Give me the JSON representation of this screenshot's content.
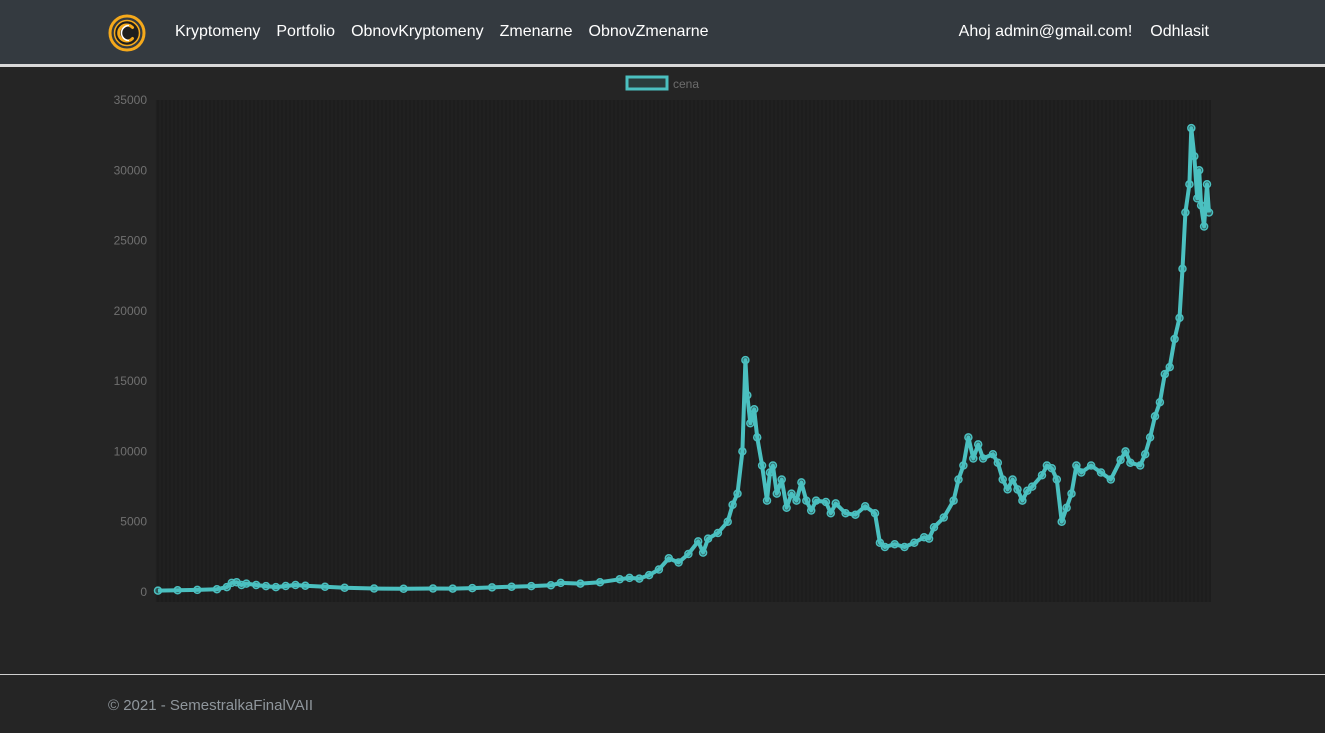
{
  "navbar": {
    "logo_icon": "crypto-coin-logo-icon",
    "links": [
      "Kryptomeny",
      "Portfolio",
      "ObnovKryptomeny",
      "Zmenarne",
      "ObnovZmenarne"
    ],
    "greeting": "Ahoj admin@gmail.com!",
    "logout": "Odhlasit",
    "accent": "#f5a91b"
  },
  "chart_data": {
    "type": "line",
    "series": [
      {
        "name": "cena",
        "color": "#4bc0c0"
      }
    ],
    "legend_position": "top-center",
    "ylim": [
      0,
      35000
    ],
    "yticks": [
      0,
      5000,
      10000,
      15000,
      20000,
      25000,
      30000,
      35000
    ],
    "grid": true,
    "points": [
      [
        0,
        100
      ],
      [
        2,
        120
      ],
      [
        4,
        150
      ],
      [
        6,
        200
      ],
      [
        7,
        350
      ],
      [
        7.5,
        650
      ],
      [
        8,
        700
      ],
      [
        8.5,
        500
      ],
      [
        9,
        600
      ],
      [
        10,
        500
      ],
      [
        11,
        420
      ],
      [
        12,
        350
      ],
      [
        13,
        430
      ],
      [
        14,
        500
      ],
      [
        15,
        450
      ],
      [
        17,
        380
      ],
      [
        19,
        300
      ],
      [
        22,
        250
      ],
      [
        25,
        230
      ],
      [
        28,
        250
      ],
      [
        30,
        240
      ],
      [
        32,
        280
      ],
      [
        34,
        330
      ],
      [
        36,
        380
      ],
      [
        38,
        420
      ],
      [
        40,
        480
      ],
      [
        41,
        650
      ],
      [
        43,
        600
      ],
      [
        45,
        700
      ],
      [
        47,
        900
      ],
      [
        48,
        1000
      ],
      [
        49,
        950
      ],
      [
        50,
        1200
      ],
      [
        51,
        1600
      ],
      [
        52,
        2400
      ],
      [
        53,
        2100
      ],
      [
        54,
        2700
      ],
      [
        55,
        3600
      ],
      [
        55.5,
        2800
      ],
      [
        56,
        3800
      ],
      [
        57,
        4200
      ],
      [
        58,
        5000
      ],
      [
        58.5,
        6200
      ],
      [
        59,
        7000
      ],
      [
        59.5,
        10000
      ],
      [
        59.8,
        16500
      ],
      [
        60,
        14000
      ],
      [
        60.3,
        12000
      ],
      [
        60.7,
        13000
      ],
      [
        61,
        11000
      ],
      [
        61.5,
        9000
      ],
      [
        62,
        6500
      ],
      [
        62.3,
        8500
      ],
      [
        62.6,
        9000
      ],
      [
        63,
        7000
      ],
      [
        63.5,
        8000
      ],
      [
        64,
        6000
      ],
      [
        64.5,
        7000
      ],
      [
        65,
        6500
      ],
      [
        65.5,
        7800
      ],
      [
        66,
        6500
      ],
      [
        66.5,
        5800
      ],
      [
        67,
        6500
      ],
      [
        68,
        6400
      ],
      [
        68.5,
        5600
      ],
      [
        69,
        6300
      ],
      [
        70,
        5600
      ],
      [
        71,
        5500
      ],
      [
        72,
        6100
      ],
      [
        73,
        5600
      ],
      [
        73.5,
        3500
      ],
      [
        74,
        3200
      ],
      [
        75,
        3400
      ],
      [
        76,
        3200
      ],
      [
        77,
        3500
      ],
      [
        78,
        3900
      ],
      [
        78.5,
        3800
      ],
      [
        79,
        4600
      ],
      [
        80,
        5300
      ],
      [
        81,
        6500
      ],
      [
        81.5,
        8000
      ],
      [
        82,
        9000
      ],
      [
        82.5,
        11000
      ],
      [
        83,
        9500
      ],
      [
        83.5,
        10500
      ],
      [
        84,
        9500
      ],
      [
        85,
        9800
      ],
      [
        85.5,
        9200
      ],
      [
        86,
        8000
      ],
      [
        86.5,
        7300
      ],
      [
        87,
        8000
      ],
      [
        87.5,
        7300
      ],
      [
        88,
        6500
      ],
      [
        88.5,
        7200
      ],
      [
        89,
        7500
      ],
      [
        90,
        8300
      ],
      [
        90.5,
        9000
      ],
      [
        91,
        8800
      ],
      [
        91.5,
        8000
      ],
      [
        92,
        5000
      ],
      [
        92.5,
        6000
      ],
      [
        93,
        7000
      ],
      [
        93.5,
        9000
      ],
      [
        94,
        8500
      ],
      [
        95,
        9000
      ],
      [
        96,
        8500
      ],
      [
        97,
        8000
      ],
      [
        98,
        9400
      ],
      [
        98.5,
        10000
      ],
      [
        99,
        9200
      ],
      [
        100,
        9000
      ],
      [
        100.5,
        9800
      ],
      [
        101,
        11000
      ],
      [
        101.5,
        12500
      ],
      [
        102,
        13500
      ],
      [
        102.5,
        15500
      ],
      [
        103,
        16000
      ],
      [
        103.5,
        18000
      ],
      [
        104,
        19500
      ],
      [
        104.3,
        23000
      ],
      [
        104.6,
        27000
      ],
      [
        105,
        29000
      ],
      [
        105.2,
        33000
      ],
      [
        105.5,
        31000
      ],
      [
        105.8,
        28000
      ],
      [
        106,
        30000
      ],
      [
        106.2,
        27500
      ],
      [
        106.5,
        26000
      ],
      [
        106.8,
        29000
      ],
      [
        107,
        27000
      ]
    ]
  },
  "footer": {
    "text": "© 2021 - SemestralkaFinalVAII"
  }
}
